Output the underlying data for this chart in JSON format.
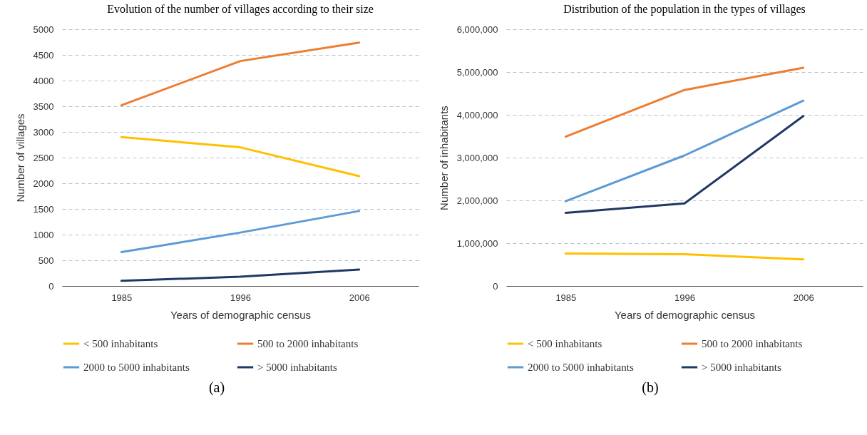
{
  "chart_data": [
    {
      "type": "line",
      "title": "Evolution of the number of villages according to their size",
      "xlabel": "Years of demographic census",
      "ylabel": "Number of villages",
      "categories": [
        "1985",
        "1996",
        "2006"
      ],
      "series": [
        {
          "name": "< 500 inhabitants",
          "color": "#ffc000",
          "values": [
            2900,
            2700,
            2140
          ]
        },
        {
          "name": "500 to 2000 inhabitants",
          "color": "#ed7d31",
          "values": [
            3520,
            4380,
            4740
          ]
        },
        {
          "name": "2000 to 5000 inhabitants",
          "color": "#5b9bd5",
          "values": [
            660,
            1040,
            1460
          ]
        },
        {
          "name": "> 5000 inhabitants",
          "color": "#203864",
          "values": [
            100,
            180,
            320
          ]
        }
      ],
      "ylim": [
        0,
        5000
      ],
      "yticks": [
        0,
        500,
        1000,
        1500,
        2000,
        2500,
        3000,
        3500,
        4000,
        4500,
        5000
      ],
      "grid": "y",
      "legend": "bottom",
      "marker": "none",
      "line_style": "solid",
      "annotations": [
        "(a)"
      ]
    },
    {
      "type": "line",
      "title": "Distribution of the population in the types of villages",
      "xlabel": "Years of demographic census",
      "ylabel": "Number of inhabitants",
      "categories": [
        "1985",
        "1996",
        "2006"
      ],
      "series": [
        {
          "name": "< 500 inhabitants",
          "color": "#ffc000",
          "values": [
            760000,
            740000,
            620000
          ]
        },
        {
          "name": "500 to 2000 inhabitants",
          "color": "#ed7d31",
          "values": [
            3490000,
            4580000,
            5100000
          ]
        },
        {
          "name": "2000 to 5000 inhabitants",
          "color": "#5b9bd5",
          "values": [
            1980000,
            3050000,
            4330000
          ]
        },
        {
          "name": "> 5000 inhabitants",
          "color": "#203864",
          "values": [
            1710000,
            1930000,
            3970000
          ]
        }
      ],
      "ylim": [
        0,
        6000000
      ],
      "yticks": [
        0,
        {
          "value": 1000000,
          "label": "1,000,000"
        },
        {
          "value": 2000000,
          "label": "2,000,000"
        },
        {
          "value": 3000000,
          "label": "3,000,000"
        },
        {
          "value": 4000000,
          "label": "4,000,000"
        },
        {
          "value": 5000000,
          "label": "5,000,000"
        },
        {
          "value": 6000000,
          "label": "6,000,000"
        }
      ],
      "grid": "y",
      "legend": "bottom",
      "marker": "none",
      "line_style": "solid",
      "annotations": [
        "(b)"
      ]
    }
  ]
}
